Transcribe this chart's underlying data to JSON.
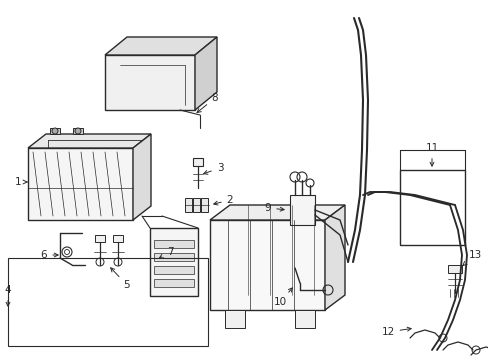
{
  "bg_color": "#ffffff",
  "line_color": "#2a2a2a",
  "lw": 1.0,
  "label_fontsize": 7.5,
  "figsize": [
    4.89,
    3.6
  ],
  "dpi": 100
}
